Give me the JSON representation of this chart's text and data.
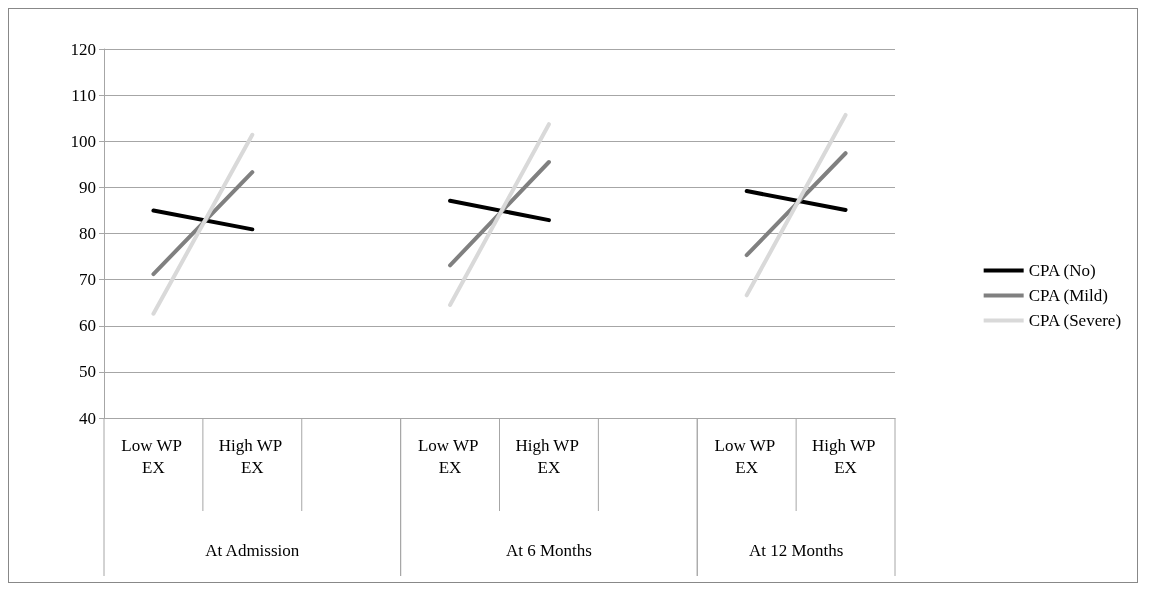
{
  "chart_data": {
    "type": "line",
    "categories": [
      "Low WP EX",
      "High WP EX",
      null,
      "Low WP EX",
      "High WP EX",
      null,
      "Low WP EX",
      "High WP EX"
    ],
    "series": [
      {
        "name": "CPA (No)",
        "color": "#000000",
        "values": [
          85.0,
          80.9,
          null,
          87.1,
          82.9,
          null,
          89.2,
          85.1
        ]
      },
      {
        "name": "CPA (Mild)",
        "color": "#808080",
        "values": [
          71.2,
          93.3,
          null,
          73.1,
          95.5,
          null,
          75.3,
          97.4
        ]
      },
      {
        "name": "CPA (Severe)",
        "color": "#d9d9d9",
        "values": [
          62.6,
          101.4,
          null,
          64.5,
          103.7,
          null,
          66.6,
          105.7
        ]
      }
    ],
    "annotations": [
      "At Admission",
      "At 6 Months",
      "At 12 Months"
    ],
    "ylim": [
      40,
      120
    ],
    "yticks": [
      40,
      50,
      60,
      70,
      80,
      90,
      100,
      110,
      120
    ],
    "grid": "y",
    "legend": "right",
    "marker": "none",
    "line_style": "solid"
  }
}
